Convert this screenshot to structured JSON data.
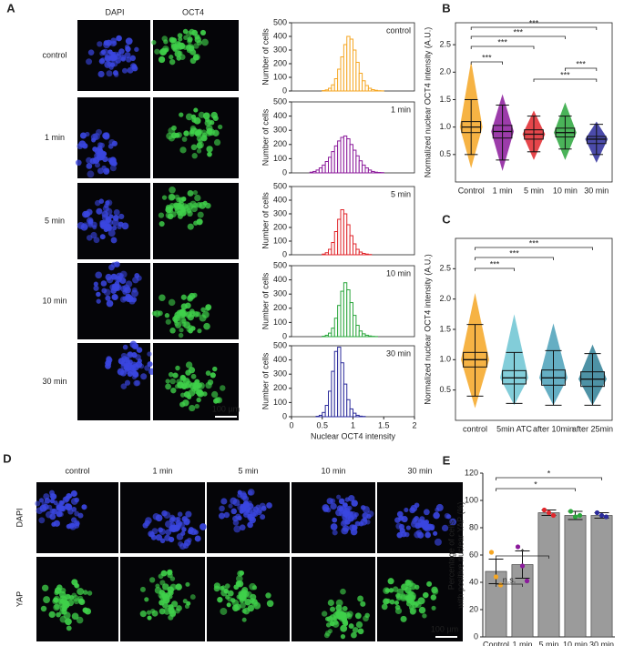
{
  "panel_labels": [
    "A",
    "B",
    "C",
    "D",
    "E"
  ],
  "panel_a": {
    "channels": [
      "DAPI",
      "OCT4"
    ],
    "rows": [
      "control",
      "1 min",
      "5 min",
      "10 min",
      "30 min"
    ],
    "scale_bar": "100 µm"
  },
  "panel_d": {
    "columns": [
      "control",
      "1 min",
      "5 min",
      "10 min",
      "30 min"
    ],
    "rows": [
      "DAPI",
      "YAP"
    ],
    "scale_bar": "100 µm"
  },
  "chart_data": [
    {
      "type": "histogram",
      "label": "control",
      "color": "#f5a623",
      "y_label": "Number of cells",
      "bins": [
        0.5,
        0.55,
        0.6,
        0.65,
        0.7,
        0.75,
        0.8,
        0.85,
        0.9,
        0.95,
        1.0,
        1.05,
        1.1,
        1.15,
        1.2,
        1.25,
        1.3,
        1.35,
        1.4,
        1.45,
        1.5
      ],
      "values": [
        3,
        8,
        20,
        45,
        90,
        160,
        250,
        340,
        400,
        380,
        300,
        210,
        130,
        75,
        40,
        20,
        10,
        5,
        2,
        1
      ],
      "xlim": [
        0,
        2
      ],
      "ylim": [
        0,
        500
      ],
      "yticks": [
        0,
        100,
        200,
        300,
        400,
        500
      ]
    },
    {
      "type": "histogram",
      "label": "1 min",
      "color": "#8b1a9b",
      "y_label": "Number of cells",
      "bins": [
        0.3,
        0.35,
        0.4,
        0.45,
        0.5,
        0.55,
        0.6,
        0.65,
        0.7,
        0.75,
        0.8,
        0.85,
        0.9,
        0.95,
        1.0,
        1.05,
        1.1,
        1.15,
        1.2,
        1.25,
        1.3,
        1.35,
        1.4,
        1.45,
        1.5
      ],
      "values": [
        5,
        10,
        20,
        35,
        55,
        80,
        110,
        150,
        190,
        225,
        250,
        260,
        240,
        200,
        160,
        120,
        85,
        55,
        35,
        20,
        10,
        5,
        3,
        2
      ],
      "xlim": [
        0,
        2
      ],
      "ylim": [
        0,
        500
      ],
      "yticks": [
        0,
        100,
        200,
        300,
        400,
        500
      ]
    },
    {
      "type": "histogram",
      "label": "5 min",
      "color": "#e0262b",
      "y_label": "Number of cells",
      "bins": [
        0.5,
        0.55,
        0.6,
        0.65,
        0.7,
        0.75,
        0.8,
        0.85,
        0.9,
        0.95,
        1.0,
        1.05,
        1.1,
        1.15,
        1.2,
        1.25,
        1.3
      ],
      "values": [
        5,
        15,
        40,
        90,
        170,
        260,
        330,
        300,
        220,
        140,
        80,
        40,
        20,
        10,
        5,
        2
      ],
      "xlim": [
        0,
        2
      ],
      "ylim": [
        0,
        500
      ],
      "yticks": [
        0,
        100,
        200,
        300,
        400,
        500
      ]
    },
    {
      "type": "histogram",
      "label": "10 min",
      "color": "#2aa63c",
      "y_label": "Number of cells",
      "bins": [
        0.5,
        0.55,
        0.6,
        0.65,
        0.7,
        0.75,
        0.8,
        0.85,
        0.9,
        0.95,
        1.0,
        1.05,
        1.1,
        1.15,
        1.2,
        1.25,
        1.3,
        1.35,
        1.4
      ],
      "values": [
        3,
        10,
        25,
        60,
        130,
        220,
        320,
        380,
        330,
        240,
        150,
        80,
        40,
        20,
        10,
        5,
        2,
        1
      ],
      "xlim": [
        0,
        2
      ],
      "ylim": [
        0,
        500
      ],
      "yticks": [
        0,
        100,
        200,
        300,
        400,
        500
      ]
    },
    {
      "type": "histogram",
      "label": "30 min",
      "color": "#2b2b9b",
      "y_label": "Number of cells",
      "x_label": "Nuclear OCT4 intensity",
      "bins": [
        0.4,
        0.45,
        0.5,
        0.55,
        0.6,
        0.65,
        0.7,
        0.75,
        0.8,
        0.85,
        0.9,
        0.95,
        1.0,
        1.05,
        1.1,
        1.15,
        1.2
      ],
      "values": [
        3,
        10,
        30,
        80,
        180,
        320,
        460,
        490,
        380,
        230,
        120,
        55,
        25,
        10,
        4,
        2
      ],
      "xlim": [
        0,
        2
      ],
      "xticks": [
        0,
        0.5,
        1,
        1.5,
        2
      ],
      "ylim": [
        0,
        500
      ],
      "yticks": [
        0,
        100,
        200,
        300,
        400,
        500
      ]
    },
    {
      "type": "box",
      "y_label": "Normalized nuclear OCT4 intensity (A.U.)",
      "categories": [
        "Control",
        "1 min",
        "5 min",
        "10 min",
        "30 min"
      ],
      "colors": [
        "#f5a623",
        "#8b1a9b",
        "#e0262b",
        "#2aa63c",
        "#2b2b9b"
      ],
      "min": [
        0.25,
        0.2,
        0.4,
        0.4,
        0.35
      ],
      "whisker_low": [
        0.5,
        0.4,
        0.55,
        0.6,
        0.5
      ],
      "q1": [
        0.9,
        0.8,
        0.78,
        0.82,
        0.7
      ],
      "median": [
        1.0,
        0.92,
        0.87,
        0.9,
        0.78
      ],
      "q3": [
        1.1,
        1.03,
        0.95,
        0.98,
        0.83
      ],
      "whisker_high": [
        1.5,
        1.4,
        1.2,
        1.2,
        1.05
      ],
      "max": [
        2.2,
        1.6,
        1.3,
        1.45,
        1.1
      ],
      "ylim": [
        0,
        2.9
      ],
      "yticks": [
        0.5,
        {
          "value": 1,
          "label": "1.0"
        },
        1.5,
        {
          "value": 2,
          "label": "2.0"
        },
        2.5
      ],
      "annotations": [
        "***",
        "***",
        "***",
        "***",
        "***",
        "***"
      ]
    },
    {
      "type": "box",
      "y_label": "Normalized nuclear OCT4 intensity (A.U.)",
      "categories": [
        "control",
        "5min ATC",
        "after 10min",
        "after 25min"
      ],
      "colors": [
        "#f5a623",
        "#6cc4d2",
        "#4aa0b8",
        "#2f7f95"
      ],
      "min": [
        0.2,
        0.25,
        0.25,
        0.25
      ],
      "whisker_low": [
        0.4,
        0.28,
        0.25,
        0.25
      ],
      "q1": [
        0.88,
        0.6,
        0.58,
        0.56
      ],
      "median": [
        1.0,
        0.7,
        0.7,
        0.68
      ],
      "q3": [
        1.12,
        0.82,
        0.83,
        0.8
      ],
      "whisker_high": [
        1.58,
        1.12,
        1.15,
        1.1
      ],
      "max": [
        2.1,
        1.75,
        1.6,
        1.25
      ],
      "ylim": [
        0,
        3
      ],
      "yticks": [
        0.5,
        {
          "value": 1,
          "label": "1.0"
        },
        1.5,
        {
          "value": 2,
          "label": "2.0"
        },
        2.5
      ],
      "annotations": [
        "***",
        "***",
        "***"
      ]
    },
    {
      "type": "bar",
      "y_label": [
        "Percentage of cells",
        "with positive nuclear YAP (%)"
      ],
      "categories": [
        "Control",
        "1 min",
        "5 min",
        "10 min",
        "30 min"
      ],
      "values": [
        48,
        53,
        91,
        89,
        89
      ],
      "errors": [
        9,
        10,
        2,
        3,
        2
      ],
      "color": "#9b9b9b",
      "points": [
        [
          62,
          44,
          38
        ],
        [
          66,
          52,
          41
        ],
        [
          93,
          91,
          89
        ],
        [
          92,
          88,
          89
        ],
        [
          91,
          89,
          88
        ]
      ],
      "point_colors": [
        "#f5a623",
        "#8b1a9b",
        "#e0262b",
        "#2aa63c",
        "#2b2b9b"
      ],
      "ylim": [
        0,
        120
      ],
      "yticks": [
        0,
        20,
        40,
        60,
        80,
        100,
        120
      ],
      "annotations": [
        "n.s.",
        "*",
        "*",
        "*"
      ]
    }
  ]
}
